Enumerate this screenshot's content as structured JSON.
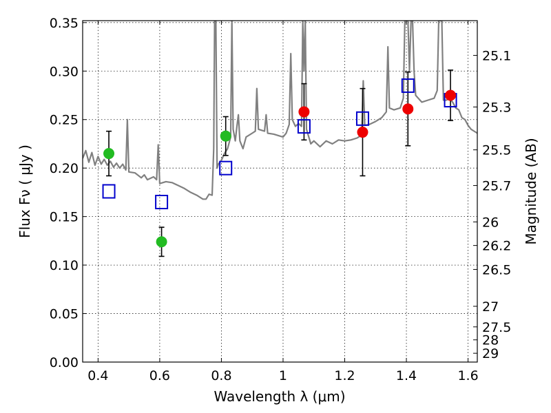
{
  "chart_data": {
    "type": "scatter",
    "xlabel": "Wavelength  λ (μm)",
    "ylabel": "Flux  Fν  ( μJy )",
    "y2label": "Magnitude (AB)",
    "xlim": [
      0.35,
      1.63
    ],
    "ylim": [
      0.0,
      0.352
    ],
    "grid": true,
    "x_ticks": [
      0.4,
      0.6,
      0.8,
      1.0,
      1.2,
      1.4,
      1.6
    ],
    "x_tick_labels": [
      "0.4",
      "0.6",
      "0.8",
      "1",
      "1.2",
      "1.4",
      "1.6"
    ],
    "y_ticks": [
      0.0,
      0.05,
      0.1,
      0.15,
      0.2,
      0.25,
      0.3,
      0.35
    ],
    "y_tick_labels": [
      "0.00",
      "0.05",
      "0.10",
      "0.15",
      "0.20",
      "0.25",
      "0.30",
      "0.35"
    ],
    "mag_ticks": [
      {
        "flux": 0.3162,
        "label": "25.1"
      },
      {
        "flux": 0.263,
        "label": "25.3"
      },
      {
        "flux": 0.2188,
        "label": "25.5"
      },
      {
        "flux": 0.182,
        "label": "25.7"
      },
      {
        "flux": 0.1445,
        "label": "26"
      },
      {
        "flux": 0.1202,
        "label": "26.2"
      },
      {
        "flux": 0.0955,
        "label": "26.5"
      },
      {
        "flux": 0.0575,
        "label": "27"
      },
      {
        "flux": 0.0363,
        "label": "27.5"
      },
      {
        "flux": 0.0229,
        "label": "28"
      },
      {
        "flux": 0.0091,
        "label": "29"
      }
    ],
    "colors": {
      "spectrum": "#808080",
      "green_points": "#22bb22",
      "red_points": "#ee0000",
      "model_squares": "#0000cc",
      "error_bars": "#000000"
    },
    "series": [
      {
        "marker": "circle-green",
        "points": [
          {
            "x": 0.435,
            "y": 0.215,
            "err": 0.023
          },
          {
            "x": 0.606,
            "y": 0.124,
            "err": 0.015
          },
          {
            "x": 0.814,
            "y": 0.233,
            "err": 0.02
          }
        ]
      },
      {
        "marker": "circle-red",
        "points": [
          {
            "x": 1.068,
            "y": 0.258,
            "err": 0.029
          },
          {
            "x": 1.258,
            "y": 0.237,
            "err": 0.045
          },
          {
            "x": 1.405,
            "y": 0.261,
            "err": 0.038
          },
          {
            "x": 1.543,
            "y": 0.275,
            "err": 0.026
          }
        ]
      },
      {
        "marker": "square-blue",
        "points": [
          {
            "x": 0.435,
            "y": 0.176
          },
          {
            "x": 0.606,
            "y": 0.165
          },
          {
            "x": 0.814,
            "y": 0.2
          },
          {
            "x": 1.068,
            "y": 0.243
          },
          {
            "x": 1.258,
            "y": 0.251
          },
          {
            "x": 1.405,
            "y": 0.285
          },
          {
            "x": 1.543,
            "y": 0.27
          }
        ]
      },
      {
        "marker": "line-spectrum",
        "points": [
          {
            "x": 0.35,
            "y": 0.21
          },
          {
            "x": 0.36,
            "y": 0.218
          },
          {
            "x": 0.37,
            "y": 0.206
          },
          {
            "x": 0.38,
            "y": 0.216
          },
          {
            "x": 0.39,
            "y": 0.203
          },
          {
            "x": 0.4,
            "y": 0.212
          },
          {
            "x": 0.41,
            "y": 0.204
          },
          {
            "x": 0.42,
            "y": 0.209
          },
          {
            "x": 0.43,
            "y": 0.203
          },
          {
            "x": 0.44,
            "y": 0.207
          },
          {
            "x": 0.45,
            "y": 0.201
          },
          {
            "x": 0.46,
            "y": 0.205
          },
          {
            "x": 0.47,
            "y": 0.2
          },
          {
            "x": 0.48,
            "y": 0.204
          },
          {
            "x": 0.49,
            "y": 0.198
          },
          {
            "x": 0.495,
            "y": 0.25
          },
          {
            "x": 0.5,
            "y": 0.196
          },
          {
            "x": 0.52,
            "y": 0.195
          },
          {
            "x": 0.54,
            "y": 0.19
          },
          {
            "x": 0.55,
            "y": 0.193
          },
          {
            "x": 0.56,
            "y": 0.188
          },
          {
            "x": 0.58,
            "y": 0.191
          },
          {
            "x": 0.59,
            "y": 0.188
          },
          {
            "x": 0.595,
            "y": 0.224
          },
          {
            "x": 0.6,
            "y": 0.184
          },
          {
            "x": 0.62,
            "y": 0.186
          },
          {
            "x": 0.64,
            "y": 0.185
          },
          {
            "x": 0.66,
            "y": 0.182
          },
          {
            "x": 0.68,
            "y": 0.179
          },
          {
            "x": 0.7,
            "y": 0.175
          },
          {
            "x": 0.72,
            "y": 0.172
          },
          {
            "x": 0.74,
            "y": 0.168
          },
          {
            "x": 0.75,
            "y": 0.168
          },
          {
            "x": 0.76,
            "y": 0.173
          },
          {
            "x": 0.77,
            "y": 0.172
          },
          {
            "x": 0.775,
            "y": 0.22
          },
          {
            "x": 0.778,
            "y": 0.352
          },
          {
            "x": 0.782,
            "y": 0.352
          },
          {
            "x": 0.786,
            "y": 0.2
          },
          {
            "x": 0.79,
            "y": 0.204
          },
          {
            "x": 0.8,
            "y": 0.208
          },
          {
            "x": 0.81,
            "y": 0.215
          },
          {
            "x": 0.82,
            "y": 0.22
          },
          {
            "x": 0.83,
            "y": 0.232
          },
          {
            "x": 0.834,
            "y": 0.352
          },
          {
            "x": 0.838,
            "y": 0.24
          },
          {
            "x": 0.845,
            "y": 0.228
          },
          {
            "x": 0.85,
            "y": 0.242
          },
          {
            "x": 0.855,
            "y": 0.255
          },
          {
            "x": 0.86,
            "y": 0.228
          },
          {
            "x": 0.87,
            "y": 0.22
          },
          {
            "x": 0.88,
            "y": 0.232
          },
          {
            "x": 0.9,
            "y": 0.236
          },
          {
            "x": 0.91,
            "y": 0.238
          },
          {
            "x": 0.915,
            "y": 0.282
          },
          {
            "x": 0.92,
            "y": 0.24
          },
          {
            "x": 0.94,
            "y": 0.238
          },
          {
            "x": 0.945,
            "y": 0.255
          },
          {
            "x": 0.95,
            "y": 0.236
          },
          {
            "x": 0.97,
            "y": 0.235
          },
          {
            "x": 0.99,
            "y": 0.233
          },
          {
            "x": 1.0,
            "y": 0.232
          },
          {
            "x": 1.01,
            "y": 0.236
          },
          {
            "x": 1.02,
            "y": 0.245
          },
          {
            "x": 1.025,
            "y": 0.318
          },
          {
            "x": 1.03,
            "y": 0.25
          },
          {
            "x": 1.04,
            "y": 0.243
          },
          {
            "x": 1.05,
            "y": 0.246
          },
          {
            "x": 1.06,
            "y": 0.243
          },
          {
            "x": 1.064,
            "y": 0.352
          },
          {
            "x": 1.068,
            "y": 0.3
          },
          {
            "x": 1.072,
            "y": 0.352
          },
          {
            "x": 1.076,
            "y": 0.24
          },
          {
            "x": 1.09,
            "y": 0.225
          },
          {
            "x": 1.1,
            "y": 0.228
          },
          {
            "x": 1.12,
            "y": 0.222
          },
          {
            "x": 1.14,
            "y": 0.228
          },
          {
            "x": 1.16,
            "y": 0.225
          },
          {
            "x": 1.18,
            "y": 0.229
          },
          {
            "x": 1.2,
            "y": 0.228
          },
          {
            "x": 1.22,
            "y": 0.229
          },
          {
            "x": 1.24,
            "y": 0.231
          },
          {
            "x": 1.255,
            "y": 0.234
          },
          {
            "x": 1.26,
            "y": 0.29
          },
          {
            "x": 1.265,
            "y": 0.244
          },
          {
            "x": 1.28,
            "y": 0.245
          },
          {
            "x": 1.3,
            "y": 0.248
          },
          {
            "x": 1.32,
            "y": 0.252
          },
          {
            "x": 1.335,
            "y": 0.258
          },
          {
            "x": 1.34,
            "y": 0.325
          },
          {
            "x": 1.345,
            "y": 0.262
          },
          {
            "x": 1.36,
            "y": 0.26
          },
          {
            "x": 1.38,
            "y": 0.262
          },
          {
            "x": 1.39,
            "y": 0.272
          },
          {
            "x": 1.395,
            "y": 0.352
          },
          {
            "x": 1.4,
            "y": 0.352
          },
          {
            "x": 1.405,
            "y": 0.352
          },
          {
            "x": 1.41,
            "y": 0.3
          },
          {
            "x": 1.415,
            "y": 0.352
          },
          {
            "x": 1.42,
            "y": 0.352
          },
          {
            "x": 1.425,
            "y": 0.3
          },
          {
            "x": 1.43,
            "y": 0.275
          },
          {
            "x": 1.45,
            "y": 0.268
          },
          {
            "x": 1.47,
            "y": 0.27
          },
          {
            "x": 1.49,
            "y": 0.272
          },
          {
            "x": 1.5,
            "y": 0.28
          },
          {
            "x": 1.505,
            "y": 0.352
          },
          {
            "x": 1.51,
            "y": 0.352
          },
          {
            "x": 1.515,
            "y": 0.352
          },
          {
            "x": 1.52,
            "y": 0.27
          },
          {
            "x": 1.53,
            "y": 0.27
          },
          {
            "x": 1.54,
            "y": 0.272
          },
          {
            "x": 1.55,
            "y": 0.268
          },
          {
            "x": 1.56,
            "y": 0.262
          },
          {
            "x": 1.57,
            "y": 0.26
          },
          {
            "x": 1.58,
            "y": 0.252
          },
          {
            "x": 1.59,
            "y": 0.25
          },
          {
            "x": 1.6,
            "y": 0.244
          },
          {
            "x": 1.61,
            "y": 0.24
          },
          {
            "x": 1.63,
            "y": 0.236
          }
        ]
      }
    ]
  }
}
